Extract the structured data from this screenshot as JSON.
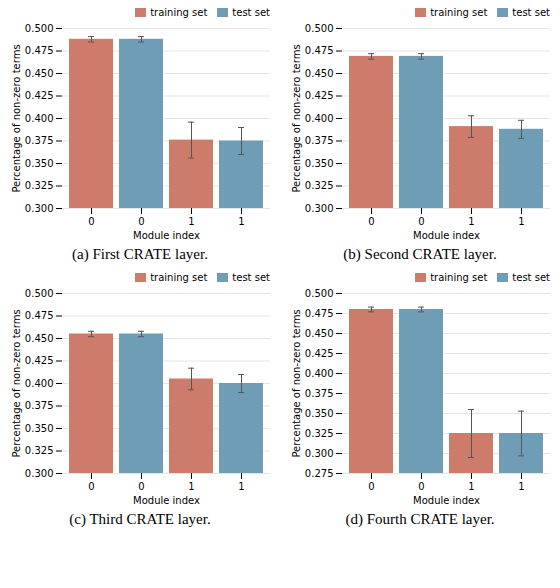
{
  "chart_data": [
    {
      "type": "bar",
      "title": "(a) First CRATE layer.",
      "categories": [
        "0",
        "0",
        "1",
        "1"
      ],
      "series": [
        {
          "name": "training set",
          "color": "#CD7B6B",
          "values": [
            0.488,
            null,
            0.376,
            null
          ],
          "errors": [
            0.003,
            null,
            0.02,
            null
          ]
        },
        {
          "name": "test set",
          "color": "#6E9DB5",
          "values": [
            null,
            0.488,
            null,
            0.375
          ],
          "errors": [
            null,
            0.003,
            null,
            0.015
          ]
        }
      ],
      "xlabel": "Module index",
      "ylabel": "Percentage of non-zero terms",
      "ylim": [
        0.3,
        0.5
      ],
      "yticks": [
        {
          "value": 0.3,
          "label": "0.300"
        },
        0.325,
        {
          "value": 0.35,
          "label": "0.350"
        },
        0.375,
        {
          "value": 0.4,
          "label": "0.400"
        },
        0.425,
        {
          "value": 0.45,
          "label": "0.450"
        },
        0.475,
        {
          "value": 0.5,
          "label": "0.500"
        }
      ],
      "grid": true,
      "legend": "upper right"
    },
    {
      "type": "bar",
      "title": "(b) Second CRATE layer.",
      "categories": [
        "0",
        "0",
        "1",
        "1"
      ],
      "series": [
        {
          "name": "training set",
          "color": "#CD7B6B",
          "values": [
            0.469,
            null,
            0.391,
            null
          ],
          "errors": [
            0.003,
            null,
            0.012,
            null
          ]
        },
        {
          "name": "test set",
          "color": "#6E9DB5",
          "values": [
            null,
            0.469,
            null,
            0.388
          ],
          "errors": [
            null,
            0.003,
            null,
            0.01
          ]
        }
      ],
      "xlabel": "Module index",
      "ylabel": "Percentage of non-zero terms",
      "ylim": [
        0.3,
        0.5
      ],
      "yticks": [
        {
          "value": 0.3,
          "label": "0.300"
        },
        0.325,
        {
          "value": 0.35,
          "label": "0.350"
        },
        0.375,
        {
          "value": 0.4,
          "label": "0.400"
        },
        0.425,
        {
          "value": 0.45,
          "label": "0.450"
        },
        0.475,
        {
          "value": 0.5,
          "label": "0.500"
        }
      ],
      "grid": true,
      "legend": "upper right"
    },
    {
      "type": "bar",
      "title": "(c) Third CRATE layer.",
      "categories": [
        "0",
        "0",
        "1",
        "1"
      ],
      "series": [
        {
          "name": "training set",
          "color": "#CD7B6B",
          "values": [
            0.455,
            null,
            0.405,
            null
          ],
          "errors": [
            0.003,
            null,
            0.012,
            null
          ]
        },
        {
          "name": "test set",
          "color": "#6E9DB5",
          "values": [
            null,
            0.455,
            null,
            0.4
          ],
          "errors": [
            null,
            0.003,
            null,
            0.01
          ]
        }
      ],
      "xlabel": "Module index",
      "ylabel": "Percentage of non-zero terms",
      "ylim": [
        0.3,
        0.5
      ],
      "yticks": [
        {
          "value": 0.3,
          "label": "0.300"
        },
        0.325,
        {
          "value": 0.35,
          "label": "0.350"
        },
        0.375,
        {
          "value": 0.4,
          "label": "0.400"
        },
        0.425,
        {
          "value": 0.45,
          "label": "0.450"
        },
        0.475,
        {
          "value": 0.5,
          "label": "0.500"
        }
      ],
      "grid": true,
      "legend": "upper right"
    },
    {
      "type": "bar",
      "title": "(d) Fourth CRATE layer.",
      "categories": [
        "0",
        "0",
        "1",
        "1"
      ],
      "series": [
        {
          "name": "training set",
          "color": "#CD7B6B",
          "values": [
            0.48,
            null,
            0.325,
            null
          ],
          "errors": [
            0.003,
            null,
            0.03,
            null
          ]
        },
        {
          "name": "test set",
          "color": "#6E9DB5",
          "values": [
            null,
            0.48,
            null,
            0.325
          ],
          "errors": [
            null,
            0.003,
            null,
            0.028
          ]
        }
      ],
      "xlabel": "Module index",
      "ylabel": "Percentage of non-zero terms",
      "ylim": [
        0.275,
        0.5
      ],
      "yticks": [
        0.275,
        {
          "value": 0.3,
          "label": "0.300"
        },
        0.325,
        {
          "value": 0.35,
          "label": "0.350"
        },
        0.375,
        {
          "value": 0.4,
          "label": "0.400"
        },
        0.425,
        {
          "value": 0.45,
          "label": "0.450"
        },
        0.475,
        {
          "value": 0.5,
          "label": "0.500"
        }
      ],
      "grid": true,
      "legend": "upper right"
    }
  ]
}
